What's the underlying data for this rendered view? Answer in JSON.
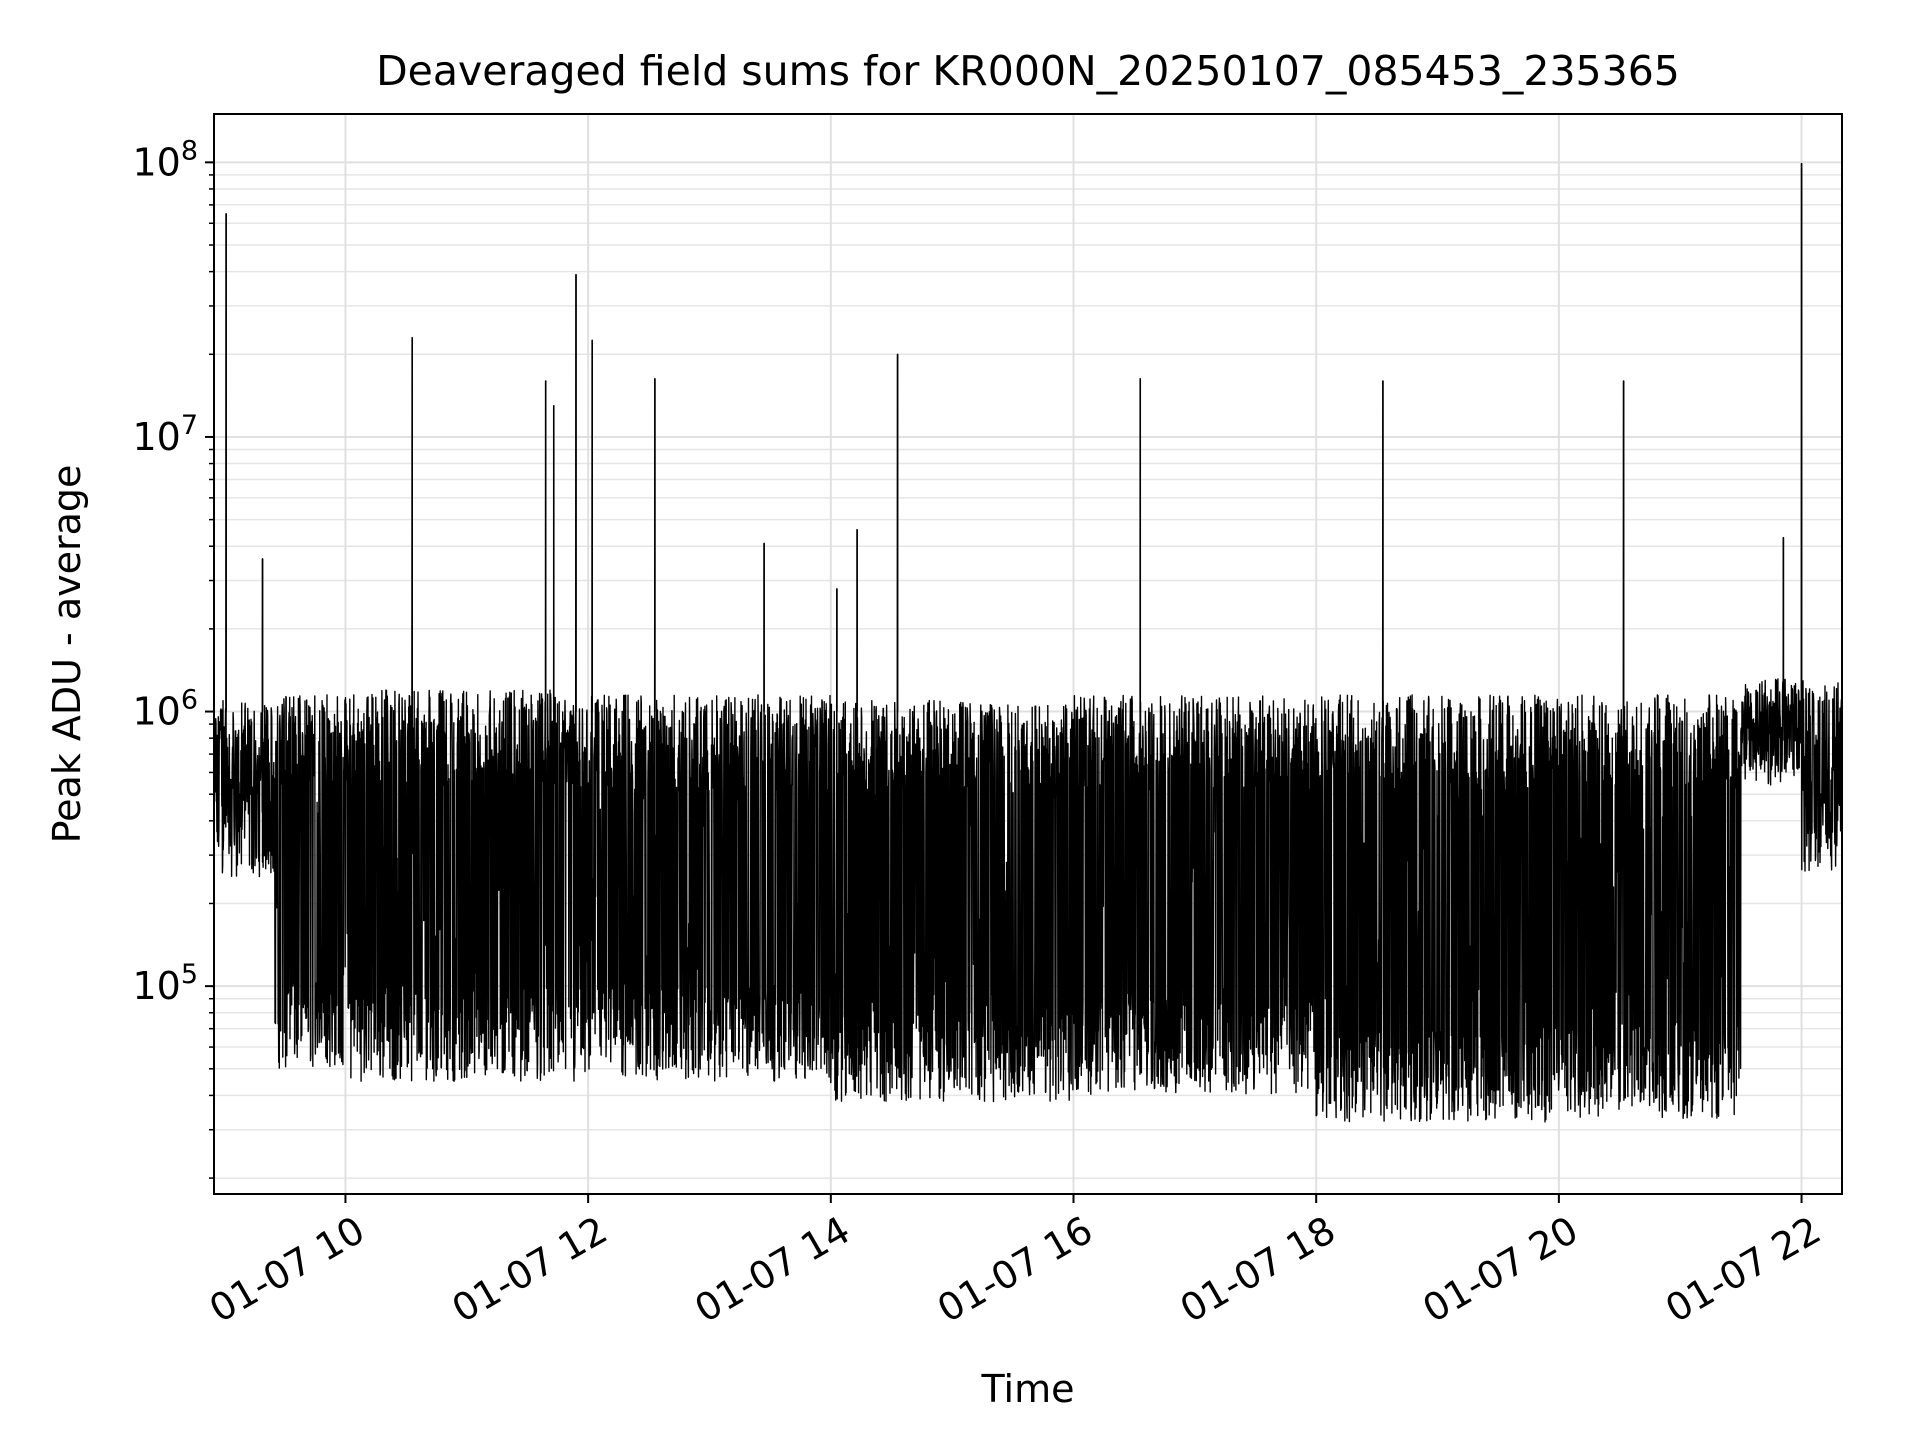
{
  "chart_data": {
    "type": "line",
    "title": "Deaveraged field sums for KR000N_20250107_085453_235365",
    "xlabel": "Time",
    "ylabel": "Peak ADU - average",
    "yscale": "log",
    "grid": true,
    "legend": "none",
    "line_color": "#000000",
    "xlim": [
      "2025-01-07 08:55",
      "2025-01-07 22:20"
    ],
    "ylim": [
      17500,
      150000000
    ],
    "x_ticks": [
      {
        "value": "2025-01-07 10:00",
        "label": "01-07 10"
      },
      {
        "value": "2025-01-07 12:00",
        "label": "01-07 12"
      },
      {
        "value": "2025-01-07 14:00",
        "label": "01-07 14"
      },
      {
        "value": "2025-01-07 16:00",
        "label": "01-07 16"
      },
      {
        "value": "2025-01-07 18:00",
        "label": "01-07 18"
      },
      {
        "value": "2025-01-07 20:00",
        "label": "01-07 20"
      },
      {
        "value": "2025-01-07 22:00",
        "label": "01-07 22"
      }
    ],
    "y_ticks": [
      {
        "value": 100000,
        "base": "10",
        "exp": "5"
      },
      {
        "value": 1000000,
        "base": "10",
        "exp": "6"
      },
      {
        "value": 10000000,
        "base": "10",
        "exp": "7"
      },
      {
        "value": 100000000,
        "base": "10",
        "exp": "8"
      }
    ],
    "spikes": [
      {
        "x": "2025-01-07 09:01",
        "y": 65000000
      },
      {
        "x": "2025-01-07 09:19",
        "y": 3600000
      },
      {
        "x": "2025-01-07 10:33",
        "y": 23000000
      },
      {
        "x": "2025-01-07 11:39",
        "y": 16000000
      },
      {
        "x": "2025-01-07 11:43",
        "y": 13000000
      },
      {
        "x": "2025-01-07 11:54",
        "y": 39000000
      },
      {
        "x": "2025-01-07 12:02",
        "y": 22500000
      },
      {
        "x": "2025-01-07 12:33",
        "y": 16300000
      },
      {
        "x": "2025-01-07 13:27",
        "y": 4100000
      },
      {
        "x": "2025-01-07 14:03",
        "y": 2800000
      },
      {
        "x": "2025-01-07 14:13",
        "y": 4600000
      },
      {
        "x": "2025-01-07 14:33",
        "y": 20000000
      },
      {
        "x": "2025-01-07 16:33",
        "y": 16300000
      },
      {
        "x": "2025-01-07 18:33",
        "y": 16000000
      },
      {
        "x": "2025-01-07 20:32",
        "y": 16000000
      },
      {
        "x": "2025-01-07 21:51",
        "y": 4300000
      },
      {
        "x": "2025-01-07 22:00",
        "y": 99000000
      }
    ],
    "segments": [
      {
        "x_start": "2025-01-07 08:55",
        "x_end": "2025-01-07 09:25",
        "y_high": 1100000,
        "y_low": 250000
      },
      {
        "x_start": "2025-01-07 09:25",
        "x_end": "2025-01-07 10:00",
        "y_high": 1150000,
        "y_low": 50000
      },
      {
        "x_start": "2025-01-07 10:00",
        "x_end": "2025-01-07 11:45",
        "y_high": 1200000,
        "y_low": 45000
      },
      {
        "x_start": "2025-01-07 11:45",
        "x_end": "2025-01-07 12:00",
        "y_high": 1100000,
        "y_low": 42000
      },
      {
        "x_start": "2025-01-07 12:00",
        "x_end": "2025-01-07 14:00",
        "y_high": 1150000,
        "y_low": 45000
      },
      {
        "x_start": "2025-01-07 14:00",
        "x_end": "2025-01-07 16:00",
        "y_high": 1100000,
        "y_low": 38000
      },
      {
        "x_start": "2025-01-07 16:00",
        "x_end": "2025-01-07 18:00",
        "y_high": 1150000,
        "y_low": 40000
      },
      {
        "x_start": "2025-01-07 18:00",
        "x_end": "2025-01-07 20:00",
        "y_high": 1150000,
        "y_low": 32000
      },
      {
        "x_start": "2025-01-07 20:00",
        "x_end": "2025-01-07 21:30",
        "y_high": 1150000,
        "y_low": 33000
      },
      {
        "x_start": "2025-01-07 21:30",
        "x_end": "2025-01-07 22:00",
        "y_high": 1200000,
        "y_low": 600000
      },
      {
        "x_start": "2025-01-07 22:00",
        "x_end": "2025-01-07 22:20",
        "y_high": 1300000,
        "y_low": 250000
      }
    ]
  }
}
